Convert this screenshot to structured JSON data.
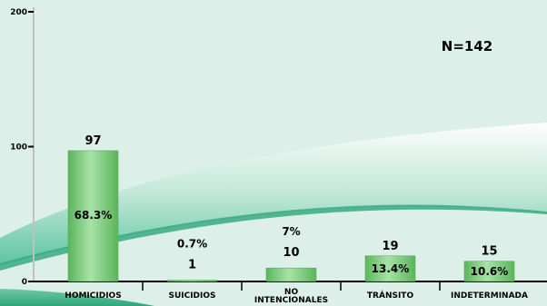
{
  "chart_data": {
    "type": "bar",
    "categories": [
      "HOMICIDIOS",
      "SUICIDIOS",
      "NO INTENCIONALES",
      "TRÁNSITO",
      "INDETERMINADA"
    ],
    "values": [
      97,
      1,
      10,
      19,
      15
    ],
    "percentages": [
      "68.3%",
      "0.7%",
      "7%",
      "13.4%",
      "10.6%"
    ],
    "ylim": [
      0,
      200
    ],
    "yticks": [
      0,
      100,
      200
    ],
    "annotation": "N=142",
    "grid": false,
    "colors": {
      "bar": "#6cc46c",
      "bar_light": "#a8e2a8",
      "background": "#dcefe8",
      "swoosh": "#ffffff"
    }
  }
}
